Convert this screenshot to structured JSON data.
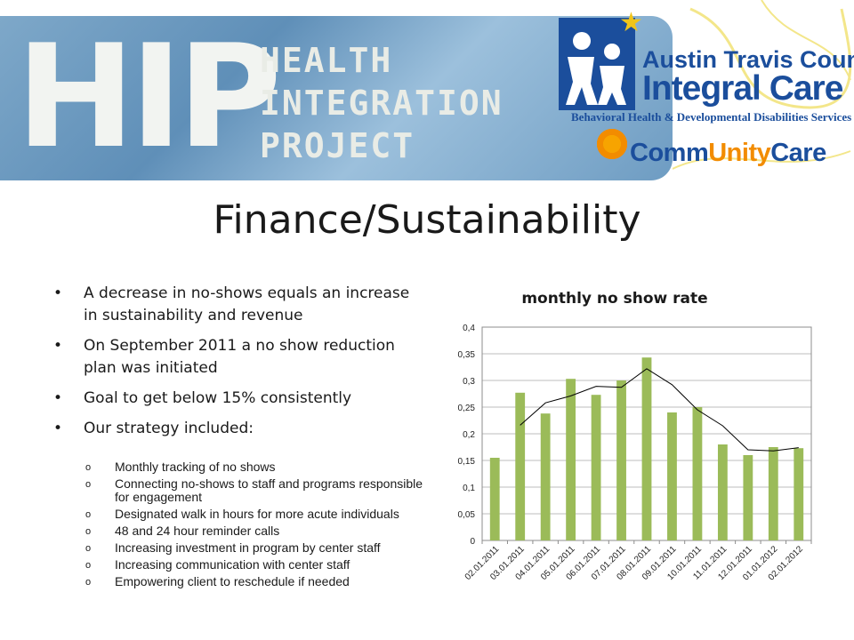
{
  "banner": {
    "hip": "HIP",
    "project_line1": "HEALTH",
    "project_line2": "INTEGRATION",
    "project_line3": "PROJECT",
    "logo1_line1": "Austin Travis County",
    "logo1_line2": "Integral Care",
    "logo1_sub": "Behavioral Health & Developmental Disabilities Services",
    "logo2_part1": "Comm",
    "logo2_part2": "Unity",
    "logo2_part3": "Care",
    "colors": {
      "brand_blue": "#1b4e9c",
      "brand_orange": "#f28c00",
      "banner_blue": "#6e9cc2"
    }
  },
  "title": "Finance/Sustainability",
  "bullets": [
    "A decrease in no-shows equals an increase in sustainability and revenue",
    "On September 2011 a no show reduction plan was initiated",
    "Goal to get below 15% consistently",
    "Our strategy included:"
  ],
  "bullet_symbol": "•",
  "sub_bullet_symbol": "o",
  "sub_bullets": [
    "Monthly tracking of no shows",
    "Connecting no-shows to staff and programs responsible for engagement",
    "Designated walk in hours for more acute individuals",
    "48 and 24 hour reminder calls",
    "Increasing investment in program by center staff",
    "Increasing communication with center staff",
    "Empowering client to reschedule if needed"
  ],
  "chart_data": {
    "type": "bar",
    "title": "monthly no show rate",
    "xlabel": "",
    "ylabel": "",
    "categories": [
      "02.01.2011",
      "03.01.2011",
      "04.01.2011",
      "05.01.2011",
      "06.01.2011",
      "07.01.2011",
      "08.01.2011",
      "09.01.2011",
      "10.01.2011",
      "11.01.2011",
      "12.01.2011",
      "01.01.2012",
      "02.01.2012"
    ],
    "series": [
      {
        "values": [
          0.155,
          0.277,
          0.238,
          0.303,
          0.273,
          0.3,
          0.343,
          0.24,
          0.25,
          0.18,
          0.16,
          0.175,
          0.173
        ],
        "color": "#9bbb59"
      }
    ],
    "trendline": {
      "type": "moving-average",
      "values": [
        null,
        0.216,
        0.258,
        0.271,
        0.289,
        0.287,
        0.322,
        0.292,
        0.245,
        0.215,
        0.17,
        0.168,
        0.174
      ],
      "color": "#000000"
    },
    "ylim": [
      0,
      0.4
    ],
    "yticks": [
      "0",
      "0,05",
      "0,1",
      "0,15",
      "0,2",
      "0,25",
      "0,3",
      "0,35",
      "0,4"
    ],
    "grid": true,
    "legend": "none"
  }
}
